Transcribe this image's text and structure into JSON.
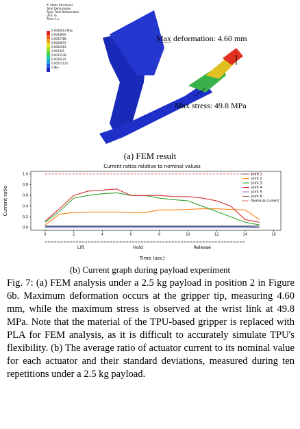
{
  "fem": {
    "legend": [
      "A: Static Structural",
      "Total Deformation",
      "Type: Total Deformation",
      "Unit: m",
      "Time: 1 s"
    ],
    "scale": [
      "0.0046013 Max",
      "0.0040900",
      "0.0035788",
      "0.0030675",
      "0.0025563",
      "0.002045",
      "0.0015338",
      "0.0010225",
      "0.00051125",
      "0 Min"
    ],
    "max_deformation": "Max deformation: 4.60 mm",
    "max_stress": "Max stress: 49.8 MPa",
    "caption": "(a) FEM result"
  },
  "chart_data": {
    "type": "line",
    "title": "Current ratios relative to nominal values",
    "x_label": "Time (sec)",
    "y_label": "Current ratio",
    "x": [
      0,
      1,
      2,
      3,
      4,
      5,
      6,
      7,
      8,
      9,
      10,
      11,
      12,
      13,
      14,
      15
    ],
    "xlim": [
      -1,
      16.5
    ],
    "ylim": [
      -0.05,
      1.05
    ],
    "xticks": [
      0,
      2,
      4,
      6,
      8,
      10,
      12,
      14,
      16
    ],
    "yticks": [
      {
        "value": 0,
        "label": "0.0"
      },
      {
        "value": 0.2,
        "label": "0.2"
      },
      {
        "value": 0.4,
        "label": "0.4"
      },
      {
        "value": 0.6,
        "label": "0.6"
      },
      {
        "value": 0.8,
        "label": "0.8"
      },
      {
        "value": 1,
        "label": "1.0"
      }
    ],
    "phases": [
      {
        "label": "Lift",
        "start": 0,
        "end": 5
      },
      {
        "label": "Hold",
        "start": 5,
        "end": 8
      },
      {
        "label": "Release",
        "start": 8,
        "end": 14
      }
    ],
    "legend_position": "upper right",
    "series": [
      {
        "name": "joint 1",
        "color": "#1f77b4",
        "values": [
          0.02,
          0.02,
          0.02,
          0.02,
          0.02,
          0.02,
          0.02,
          0.02,
          0.02,
          0.02,
          0.02,
          0.02,
          0.02,
          0.02,
          0.02,
          0.01
        ]
      },
      {
        "name": "joint 2",
        "color": "#ff7f0e",
        "values": [
          0.05,
          0.25,
          0.28,
          0.29,
          0.29,
          0.29,
          0.28,
          0.28,
          0.33,
          0.33,
          0.34,
          0.35,
          0.35,
          0.34,
          0.33,
          0.15
        ]
      },
      {
        "name": "joint 3",
        "color": "#2ca02c",
        "values": [
          0.1,
          0.3,
          0.55,
          0.6,
          0.63,
          0.65,
          0.6,
          0.6,
          0.55,
          0.52,
          0.5,
          0.4,
          0.3,
          0.2,
          0.1,
          0.05
        ]
      },
      {
        "name": "joint 4",
        "color": "#d62728",
        "values": [
          0.12,
          0.35,
          0.6,
          0.68,
          0.7,
          0.72,
          0.6,
          0.6,
          0.6,
          0.58,
          0.58,
          0.55,
          0.5,
          0.4,
          0.15,
          0.1
        ]
      },
      {
        "name": "joint 5",
        "color": "#9467bd",
        "values": [
          0.0,
          0.0,
          0.0,
          0.0,
          0.0,
          0.0,
          0.0,
          0.0,
          0.0,
          0.0,
          0.0,
          0.0,
          0.0,
          0.0,
          0.0,
          0.0
        ]
      },
      {
        "name": "joint 6",
        "color": "#8c564b",
        "values": [
          0.03,
          0.03,
          0.03,
          0.03,
          0.03,
          0.03,
          0.03,
          0.03,
          0.03,
          0.03,
          0.03,
          0.03,
          0.03,
          0.03,
          0.03,
          0.03
        ]
      },
      {
        "name": "Nominal current",
        "color": "#d62728",
        "dashed": true,
        "values": [
          1,
          1,
          1,
          1,
          1,
          1,
          1,
          1,
          1,
          1,
          1,
          1,
          1,
          1,
          1,
          1
        ]
      }
    ],
    "caption": "(b) Current graph during payload experiment"
  },
  "paragraph": "Fig. 7: (a) FEM analysis under a 2.5 kg payload in position 2 in Figure 6b. Maximum deformation occurs at the gripper tip, measuring 4.60 mm, while the maximum stress is observed at the wrist link at 49.8 MPa. Note that the material of the TPU-based gripper is replaced with PLA for FEM analysis, as it is difficult to accurately simulate TPU's flexibility. (b) The average ratio of actuator current to its nominal value for each actuator and their standard deviations, measured during ten repetitions under a 2.5 kg payload."
}
